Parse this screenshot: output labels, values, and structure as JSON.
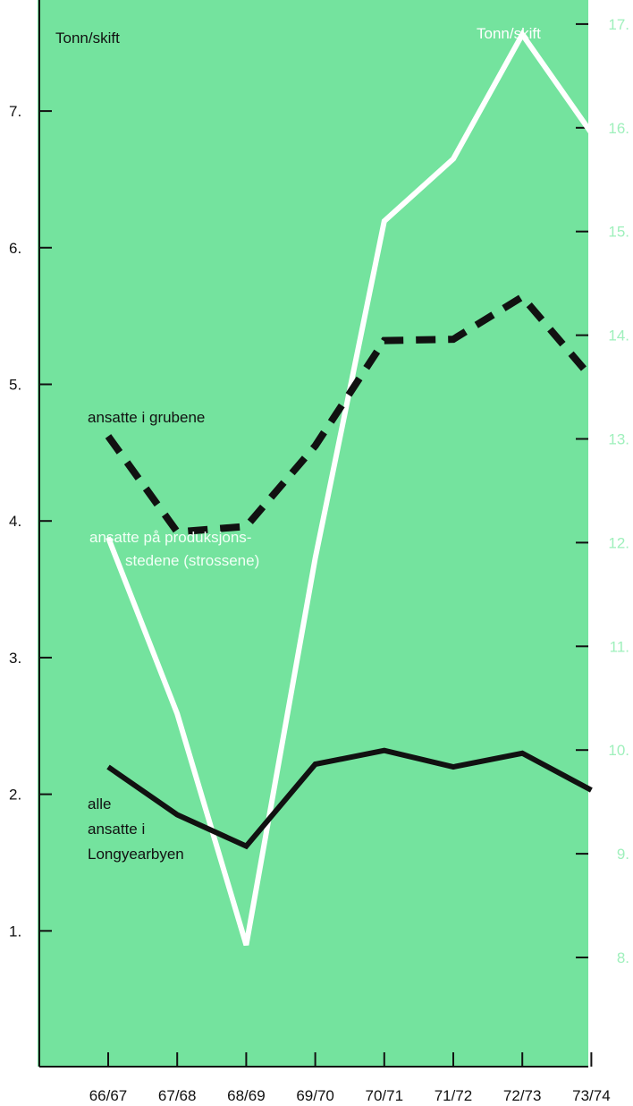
{
  "chart_data": {
    "type": "line",
    "categories": [
      "66/67",
      "67/68",
      "68/69",
      "69/70",
      "70/71",
      "71/72",
      "72/73",
      "73/74"
    ],
    "left_axis": {
      "title": "Tonn/skift",
      "ticks": [
        "1.",
        "2.",
        "3.",
        "4.",
        "5.",
        "6.",
        "7."
      ],
      "tick_values": [
        1,
        2,
        3,
        4,
        5,
        6,
        7
      ],
      "range": [
        0,
        8
      ]
    },
    "right_axis": {
      "title": "Tonn/skift",
      "ticks": [
        "8.",
        "9.",
        "10.",
        "11.",
        "12.",
        "13.",
        "14.",
        "15.",
        "16.",
        "17."
      ],
      "tick_values": [
        8,
        9,
        10,
        11,
        12,
        13,
        14,
        15,
        16,
        17
      ],
      "range": [
        7,
        17.3
      ]
    },
    "series": [
      {
        "name": "ansatte i grubene",
        "axis": "left",
        "style": "dashed",
        "color": "#111111",
        "values": [
          4.62,
          3.92,
          3.96,
          4.55,
          5.32,
          5.33,
          5.64,
          5.05
        ]
      },
      {
        "name": "ansatte på produksjons-stedene (strossene)",
        "axis": "right",
        "style": "solid",
        "color": "#ffffff",
        "values": [
          12.05,
          10.35,
          8.12,
          11.85,
          15.1,
          15.7,
          16.9,
          15.95
        ]
      },
      {
        "name": "alle ansatte i Longyearbyen",
        "axis": "left",
        "style": "solid",
        "color": "#111111",
        "values": [
          2.2,
          1.85,
          1.62,
          2.22,
          2.32,
          2.2,
          2.3,
          2.03
        ]
      }
    ],
    "annotations": {
      "grubene": "ansatte i grubene",
      "produksjon_line1": "ansatte på produksjons-",
      "produksjon_line2": "stedene (strossene)",
      "alle_line1": "alle",
      "alle_line2": "ansatte i",
      "alle_line3": "Longyearbyen"
    },
    "colors": {
      "background": "#74e39e",
      "right_axis": "#9ff0bc",
      "dark": "#111111",
      "white": "#ffffff"
    },
    "grid": false
  }
}
